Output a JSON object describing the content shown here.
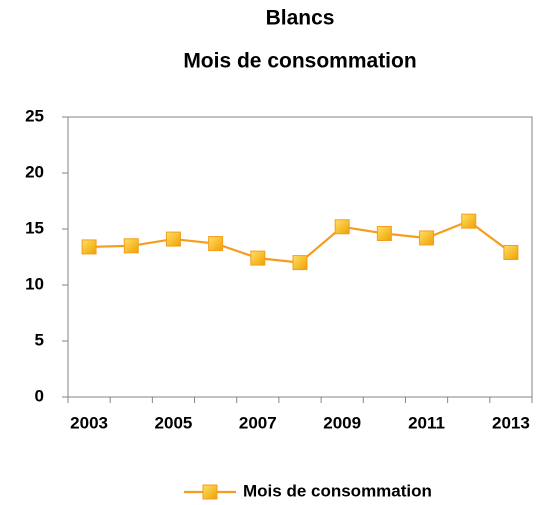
{
  "chart_data": {
    "type": "line",
    "title": "Blancs",
    "subtitle": "Mois de consommation",
    "categories": [
      "2003",
      null,
      "2005",
      null,
      "2007",
      null,
      "2009",
      null,
      "2011",
      null,
      "2013"
    ],
    "series": [
      {
        "name": "Mois de consommation",
        "color": "#f59d1e",
        "marker_color": "#ffc000",
        "values": [
          13.4,
          13.5,
          14.1,
          13.7,
          12.4,
          12.0,
          15.2,
          14.6,
          14.2,
          15.7,
          12.9
        ]
      }
    ],
    "ylim": [
      0,
      25
    ],
    "yticks": [
      0,
      5,
      10,
      15,
      20,
      25
    ],
    "grid": false,
    "legend": "bottom"
  }
}
